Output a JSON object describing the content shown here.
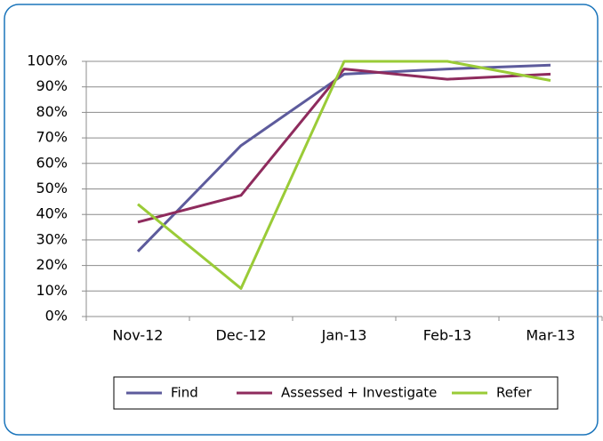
{
  "chart_data": {
    "type": "line",
    "categories": [
      "Nov-12",
      "Dec-12",
      "Jan-13",
      "Feb-13",
      "Mar-13"
    ],
    "series": [
      {
        "name": "Find",
        "color": "#5d5b9c",
        "values": [
          25.5,
          67,
          95,
          97,
          98.5
        ]
      },
      {
        "name": "Assessed + Investigate",
        "color": "#8e2b5d",
        "values": [
          37,
          47.5,
          97,
          93,
          95
        ]
      },
      {
        "name": "Refer",
        "color": "#9acb37",
        "values": [
          44,
          11,
          100,
          100,
          92.5
        ]
      }
    ],
    "ylim": [
      0,
      100
    ],
    "yticks": [
      {
        "value": 0,
        "label": "0%"
      },
      {
        "value": 10,
        "label": "10%"
      },
      {
        "value": 20,
        "label": "20%"
      },
      {
        "value": 30,
        "label": "30%"
      },
      {
        "value": 40,
        "label": "40%"
      },
      {
        "value": 50,
        "label": "50%"
      },
      {
        "value": 60,
        "label": "60%"
      },
      {
        "value": 70,
        "label": "70%"
      },
      {
        "value": 80,
        "label": "80%"
      },
      {
        "value": 90,
        "label": "90%"
      },
      {
        "value": 100,
        "label": "100%"
      }
    ],
    "grid": true,
    "legend": "bottom"
  }
}
